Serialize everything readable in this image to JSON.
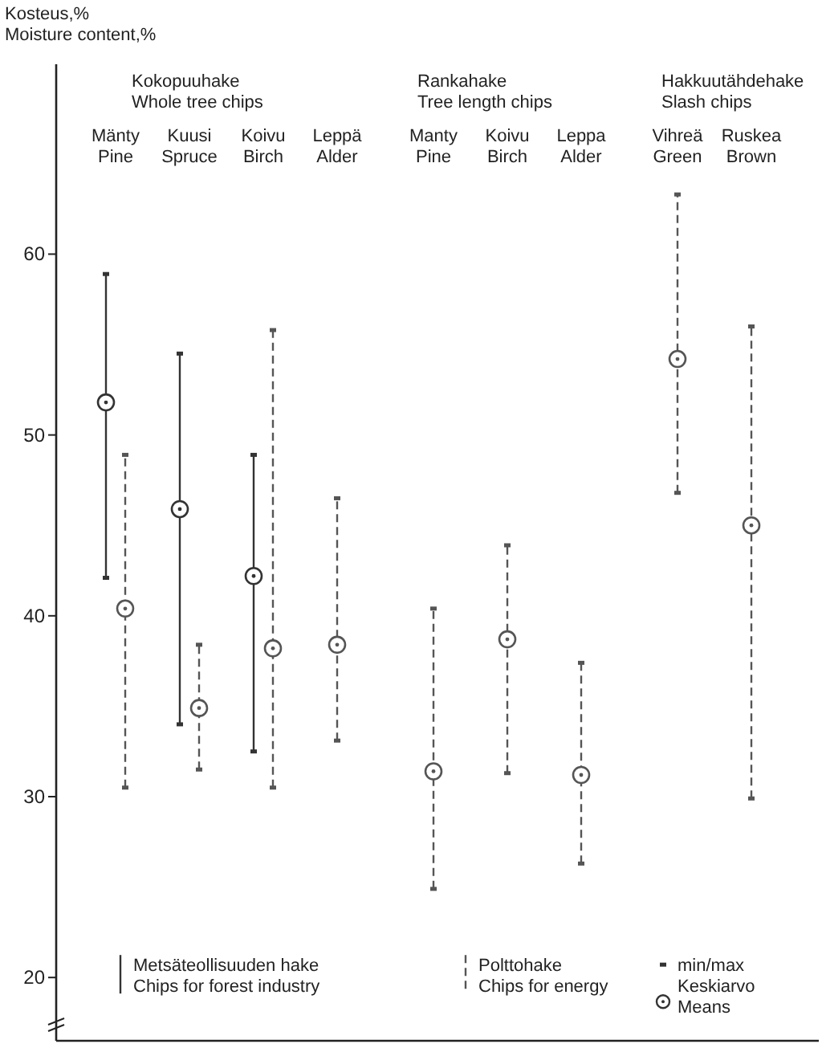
{
  "chart_data": {
    "type": "scatter",
    "ylabel": "Kosteus,%\nMoisture content,%",
    "categories": [
      "Mänty\nPine",
      "Kuusi\nSpruce",
      "Koivu\nBirch",
      "Leppä\nAlder",
      "Manty\nPine",
      "Koivu\nBirch",
      "Leppa\nAlder",
      "Vihreä\nGreen",
      "Ruskea\nBrown"
    ],
    "series": [
      {
        "name": "Metsäteollisuuden hake\nChips for forest industry",
        "color": "#333333",
        "line_style": "solid",
        "values": [
          51.8,
          45.9,
          42.2,
          null,
          null,
          null,
          null,
          null,
          null
        ],
        "errors": [
          [
            42.1,
            58.9
          ],
          [
            34.0,
            54.5
          ],
          [
            32.5,
            48.9
          ],
          null,
          null,
          null,
          null,
          null,
          null
        ]
      },
      {
        "name": "Polttohake\nChips for energy",
        "color": "#555555",
        "line_style": "dashed",
        "values": [
          40.4,
          34.9,
          38.2,
          38.4,
          31.4,
          38.7,
          31.2,
          54.2,
          45.0
        ],
        "errors": [
          [
            30.5,
            48.9
          ],
          [
            31.5,
            38.4
          ],
          [
            30.5,
            55.8
          ],
          [
            33.1,
            46.5
          ],
          [
            24.9,
            40.4
          ],
          [
            31.3,
            43.9
          ],
          [
            26.3,
            37.4
          ],
          [
            46.8,
            63.3
          ],
          [
            29.9,
            56.0
          ]
        ]
      }
    ],
    "marker": "circle",
    "ylim": [
      16.5,
      70.5
    ],
    "yticks": [
      20,
      30,
      40,
      50,
      60
    ],
    "grid": false,
    "legend": "bottom",
    "annotations": [
      "Kokopuuhake\nWhole tree chips",
      "Rankahake\nTree length chips",
      "Hakkuutähdehake\nSlash chips",
      "min/max",
      "Keskiarvo\nMeans"
    ]
  }
}
